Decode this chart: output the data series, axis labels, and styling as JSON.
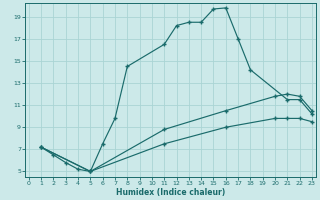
{
  "xlabel": "Humidex (Indice chaleur)",
  "background_color": "#cce9e9",
  "grid_color": "#aad4d4",
  "line_color": "#1a6b6b",
  "xlim": [
    -0.3,
    23.3
  ],
  "ylim": [
    4.5,
    20.2
  ],
  "yticks": [
    5,
    7,
    9,
    11,
    13,
    15,
    17,
    19
  ],
  "xticks": [
    0,
    1,
    2,
    3,
    4,
    5,
    6,
    7,
    8,
    9,
    10,
    11,
    12,
    13,
    14,
    15,
    16,
    17,
    18,
    19,
    20,
    21,
    22,
    23
  ],
  "curve_main_x": [
    1,
    2,
    3,
    4,
    5,
    6,
    7,
    8,
    11,
    12,
    13,
    14,
    15,
    16,
    17,
    18,
    21,
    22,
    23
  ],
  "curve_main_y": [
    7.2,
    6.5,
    5.8,
    5.2,
    5.0,
    7.5,
    9.8,
    14.5,
    16.5,
    18.2,
    18.5,
    18.5,
    19.7,
    19.8,
    17.0,
    14.2,
    11.5,
    11.5,
    10.2
  ],
  "curve_mid_x": [
    1,
    5,
    11,
    16,
    20,
    21,
    22,
    23
  ],
  "curve_mid_y": [
    7.2,
    5.0,
    8.8,
    10.5,
    11.8,
    12.0,
    11.8,
    10.5
  ],
  "curve_low_x": [
    1,
    5,
    11,
    16,
    20,
    21,
    22,
    23
  ],
  "curve_low_y": [
    7.2,
    5.0,
    7.5,
    9.0,
    9.8,
    9.8,
    9.8,
    9.5
  ]
}
